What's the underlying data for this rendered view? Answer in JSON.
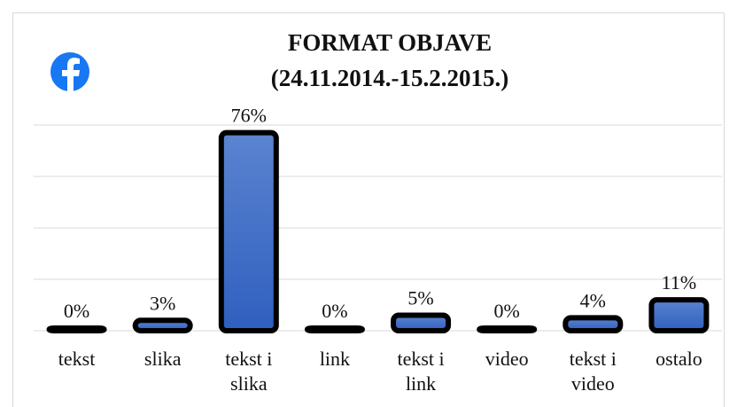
{
  "chart_data": {
    "type": "bar",
    "title": "FORMAT OBJAVE",
    "subtitle": "(24.11.2014.-15.2.2015.)",
    "categories": [
      "tekst",
      "slika",
      "tekst i slika",
      "link",
      "tekst i link",
      "video",
      "tekst i video",
      "ostalo"
    ],
    "values": [
      0,
      3,
      76,
      0,
      5,
      0,
      4,
      11
    ],
    "value_labels": [
      "0%",
      "3%",
      "76%",
      "0%",
      "5%",
      "0%",
      "4%",
      "11%"
    ],
    "color": "#4472c4",
    "ylim": [
      0,
      80
    ],
    "yticks": [
      0,
      20,
      40,
      60,
      80
    ],
    "grid": true
  }
}
